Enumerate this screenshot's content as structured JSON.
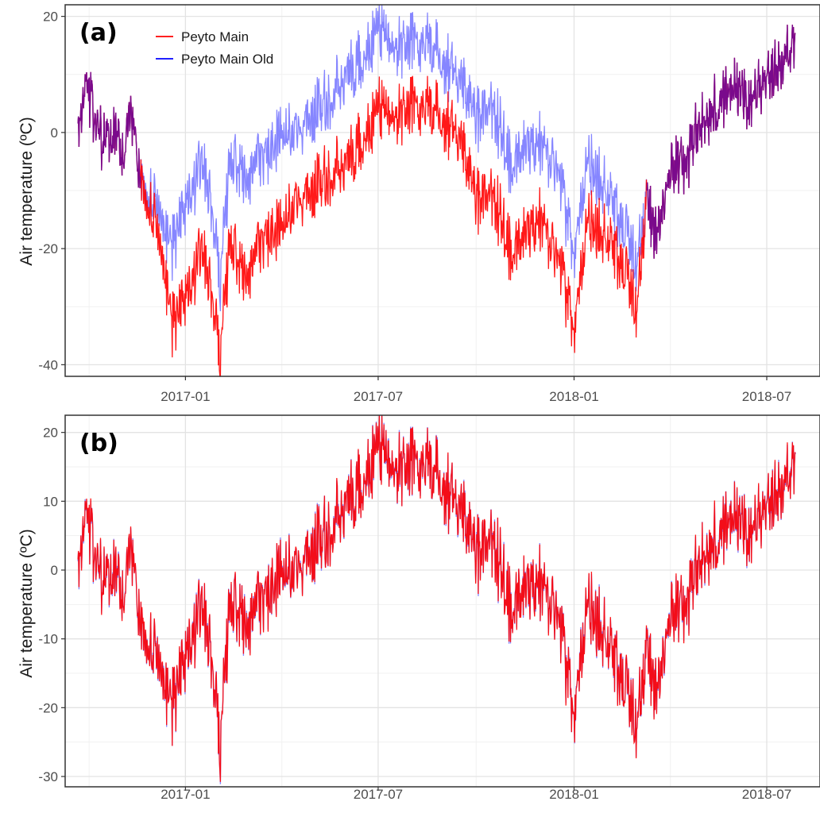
{
  "colors": {
    "peyto_main": "#ff0000",
    "peyto_main_old": "#0000ff",
    "overlap": "#7a0a8c",
    "grid_major": "#e3e3e3",
    "grid_minor": "#f1f1f1",
    "panel_border": "#333333"
  },
  "legend": {
    "items": [
      {
        "label": "Peyto Main",
        "color": "#ff0000"
      },
      {
        "label": "Peyto Main Old",
        "color": "#0000ff"
      }
    ]
  },
  "chart_data": [
    {
      "type": "line",
      "panel_label": "(a)",
      "ylabel": "Air temperature (ºC)",
      "xlabel": "",
      "x_ticks": [
        "2017-01",
        "2017-07",
        "2018-01",
        "2018-07"
      ],
      "y_ticks": [
        -40,
        -20,
        0,
        20
      ],
      "xlim": [
        "2016-09-10",
        "2018-08-20"
      ],
      "ylim": [
        -42,
        22
      ],
      "grid": true,
      "legend_position": "top-left",
      "series": [
        {
          "name": "Peyto Main",
          "x": [
            "2016-09-22",
            "2016-10-01",
            "2016-10-08",
            "2016-10-16",
            "2016-10-25",
            "2016-11-03",
            "2016-11-12",
            "2016-11-20",
            "2016-11-28",
            "2016-12-05",
            "2016-12-12",
            "2016-12-19",
            "2016-12-26",
            "2017-01-05",
            "2017-01-14",
            "2017-01-24",
            "2017-02-03",
            "2017-02-12",
            "2017-02-22",
            "2017-03-05",
            "2017-03-18",
            "2017-04-01",
            "2017-04-15",
            "2017-05-01",
            "2017-05-15",
            "2017-06-01",
            "2017-06-15",
            "2017-07-01",
            "2017-07-15",
            "2017-08-01",
            "2017-08-15",
            "2017-09-01",
            "2017-09-15",
            "2017-10-01",
            "2017-10-15",
            "2017-11-01",
            "2017-11-15",
            "2017-12-01",
            "2017-12-15",
            "2018-01-01",
            "2018-01-15",
            "2018-02-01",
            "2018-02-15",
            "2018-03-01",
            "2018-03-10",
            "2018-03-20",
            "2018-04-01",
            "2018-04-15",
            "2018-05-01",
            "2018-05-15",
            "2018-06-01",
            "2018-06-15",
            "2018-07-01",
            "2018-07-15",
            "2018-07-28"
          ],
          "y": [
            0,
            8,
            1,
            -2,
            0,
            -3,
            4,
            -8,
            -14,
            -18,
            -23,
            -33,
            -30,
            -28,
            -20,
            -25,
            -38,
            -18,
            -25,
            -22,
            -18,
            -16,
            -12,
            -10,
            -8,
            -5,
            -2,
            4,
            3,
            5,
            4,
            2,
            0,
            -12,
            -10,
            -20,
            -18,
            -15,
            -20,
            -33,
            -15,
            -18,
            -22,
            -30,
            -12,
            -18,
            -6,
            -5,
            2,
            5,
            8,
            5,
            10,
            12,
            14
          ]
        },
        {
          "name": "Peyto Main Old",
          "x": [
            "2016-09-22",
            "2016-10-01",
            "2016-10-08",
            "2016-10-16",
            "2016-10-25",
            "2016-11-03",
            "2016-11-12",
            "2016-11-20",
            "2016-11-28",
            "2016-12-05",
            "2016-12-12",
            "2016-12-19",
            "2016-12-26",
            "2017-01-05",
            "2017-01-14",
            "2017-01-24",
            "2017-02-03",
            "2017-02-12",
            "2017-02-22",
            "2017-03-05",
            "2017-03-18",
            "2017-04-01",
            "2017-04-15",
            "2017-05-01",
            "2017-05-15",
            "2017-06-01",
            "2017-06-15",
            "2017-07-01",
            "2017-07-15",
            "2017-08-01",
            "2017-08-15",
            "2017-09-01",
            "2017-09-15",
            "2017-10-01",
            "2017-10-15",
            "2017-11-01",
            "2017-11-15",
            "2017-12-01",
            "2017-12-15",
            "2018-01-01",
            "2018-01-15",
            "2018-02-01",
            "2018-02-15",
            "2018-03-01",
            "2018-03-10",
            "2018-03-20",
            "2018-04-01",
            "2018-04-15",
            "2018-05-01",
            "2018-05-15",
            "2018-06-01",
            "2018-06-15",
            "2018-07-01",
            "2018-07-15",
            "2018-07-28"
          ],
          "y": [
            0,
            8,
            1,
            -2,
            0,
            -3,
            4,
            -8,
            -12,
            -14,
            -16,
            -20,
            -15,
            -12,
            -5,
            -10,
            -25,
            -4,
            -8,
            -6,
            -4,
            0,
            0,
            3,
            5,
            10,
            12,
            18,
            15,
            16,
            15,
            12,
            10,
            2,
            5,
            -5,
            -3,
            -2,
            -5,
            -20,
            -5,
            -10,
            -15,
            -22,
            -12,
            -18,
            -6,
            -5,
            2,
            5,
            8,
            5,
            10,
            12,
            14
          ]
        }
      ]
    },
    {
      "type": "line",
      "panel_label": "(b)",
      "ylabel": "Air temperature (ºC)",
      "xlabel": "",
      "x_ticks": [
        "2017-01",
        "2017-07",
        "2018-01",
        "2018-07"
      ],
      "y_ticks": [
        -30,
        -20,
        -10,
        0,
        10,
        20
      ],
      "xlim": [
        "2016-09-10",
        "2018-08-20"
      ],
      "ylim": [
        -31.5,
        22.5
      ],
      "grid": true,
      "series": [
        {
          "name": "Peyto Main",
          "x": [
            "2016-09-22",
            "2016-10-01",
            "2016-10-08",
            "2016-10-16",
            "2016-10-25",
            "2016-11-03",
            "2016-11-12",
            "2016-11-20",
            "2016-11-28",
            "2016-12-05",
            "2016-12-12",
            "2016-12-19",
            "2016-12-26",
            "2017-01-05",
            "2017-01-14",
            "2017-01-24",
            "2017-02-03",
            "2017-02-12",
            "2017-02-22",
            "2017-03-05",
            "2017-03-18",
            "2017-04-01",
            "2017-04-15",
            "2017-05-01",
            "2017-05-15",
            "2017-06-01",
            "2017-06-15",
            "2017-07-01",
            "2017-07-15",
            "2017-08-01",
            "2017-08-15",
            "2017-09-01",
            "2017-09-15",
            "2017-10-01",
            "2017-10-15",
            "2017-11-01",
            "2017-11-15",
            "2017-12-01",
            "2017-12-15",
            "2018-01-01",
            "2018-01-15",
            "2018-02-01",
            "2018-02-15",
            "2018-03-01",
            "2018-03-10",
            "2018-03-20",
            "2018-04-01",
            "2018-04-15",
            "2018-05-01",
            "2018-05-15",
            "2018-06-01",
            "2018-06-15",
            "2018-07-01",
            "2018-07-15",
            "2018-07-28"
          ],
          "y": [
            0,
            8,
            1,
            -2,
            0,
            -3,
            4,
            -8,
            -12,
            -14,
            -16,
            -20,
            -15,
            -12,
            -5,
            -10,
            -25,
            -4,
            -8,
            -6,
            -4,
            0,
            0,
            3,
            5,
            10,
            12,
            18,
            15,
            16,
            15,
            12,
            10,
            2,
            5,
            -5,
            -3,
            -2,
            -5,
            -20,
            -5,
            -10,
            -15,
            -22,
            -12,
            -18,
            -6,
            -5,
            2,
            5,
            8,
            5,
            10,
            12,
            14
          ]
        },
        {
          "name": "Peyto Main Old",
          "x": [
            "2016-09-22",
            "2016-10-01",
            "2016-10-08",
            "2016-10-16",
            "2016-10-25",
            "2016-11-03",
            "2016-11-12",
            "2016-11-20",
            "2016-11-28",
            "2016-12-05",
            "2016-12-12",
            "2016-12-19",
            "2016-12-26",
            "2017-01-05",
            "2017-01-14",
            "2017-01-24",
            "2017-02-03",
            "2017-02-12",
            "2017-02-22",
            "2017-03-05",
            "2017-03-18",
            "2017-04-01",
            "2017-04-15",
            "2017-05-01",
            "2017-05-15",
            "2017-06-01",
            "2017-06-15",
            "2017-07-01",
            "2017-07-15",
            "2017-08-01",
            "2017-08-15",
            "2017-09-01",
            "2017-09-15",
            "2017-10-01",
            "2017-10-15",
            "2017-11-01",
            "2017-11-15",
            "2017-12-01",
            "2017-12-15",
            "2018-01-01",
            "2018-01-15",
            "2018-02-01",
            "2018-02-15",
            "2018-03-01",
            "2018-03-10",
            "2018-03-20",
            "2018-04-01",
            "2018-04-15",
            "2018-05-01",
            "2018-05-15",
            "2018-06-01",
            "2018-06-15",
            "2018-07-01",
            "2018-07-15",
            "2018-07-28"
          ],
          "y": [
            0,
            8,
            1,
            -2,
            0,
            -3,
            4,
            -8,
            -12,
            -14,
            -16,
            -20,
            -15,
            -12,
            -5,
            -10,
            -25,
            -4,
            -8,
            -6,
            -4,
            0,
            0,
            3,
            5,
            10,
            12,
            18,
            15,
            16,
            15,
            12,
            10,
            2,
            5,
            -5,
            -3,
            -2,
            -5,
            -20,
            -5,
            -10,
            -15,
            -22,
            -12,
            -18,
            -6,
            -5,
            2,
            5,
            8,
            5,
            10,
            12,
            14
          ]
        }
      ]
    }
  ]
}
